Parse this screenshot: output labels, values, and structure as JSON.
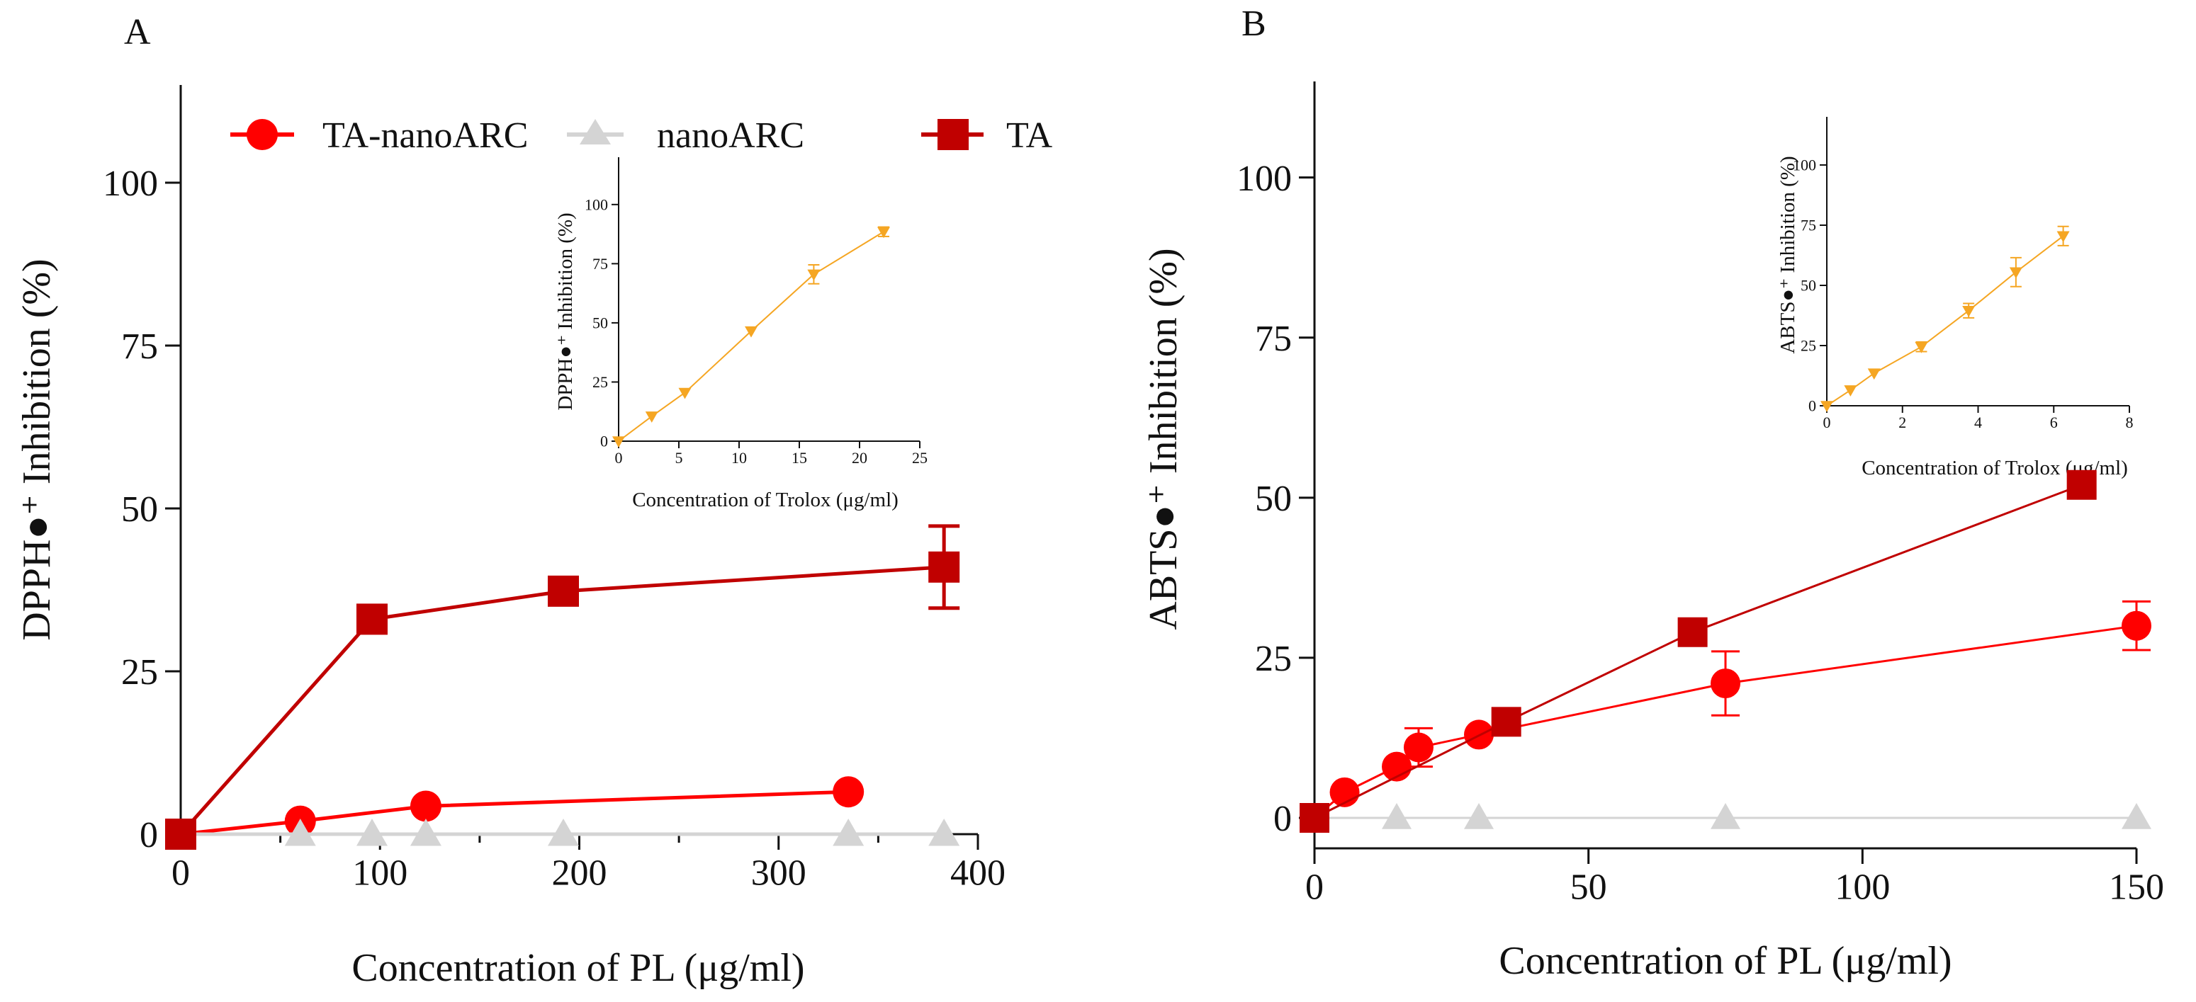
{
  "chart_data": [
    {
      "panel": "A",
      "type": "line",
      "title": "",
      "xlabel": "Concentration of PL  (μg/ml)",
      "ylabel": "DPPH●⁺ Inhibition (%)",
      "xlim": [
        0,
        400
      ],
      "ylim": [
        0,
        115
      ],
      "xticks": [
        0,
        100,
        200,
        300,
        400
      ],
      "yticks": [
        0,
        25,
        50,
        75,
        100
      ],
      "legend_position": "top",
      "series": [
        {
          "name": "TA-nanoARC",
          "color": "#ff0000",
          "marker": "circle",
          "x": [
            0,
            60,
            123,
            335
          ],
          "y": [
            0,
            2,
            4.3,
            6.5
          ],
          "err": [
            0,
            0,
            0,
            0
          ]
        },
        {
          "name": "nanoARC",
          "color": "#d4d4d4",
          "marker": "triangle",
          "x": [
            0,
            60,
            96,
            123,
            192,
            335,
            383
          ],
          "y": [
            0,
            0,
            0,
            0,
            0,
            0,
            0
          ],
          "err": [
            0,
            0,
            0,
            0,
            0,
            0,
            0
          ]
        },
        {
          "name": "TA",
          "color": "#c00000",
          "marker": "square",
          "x": [
            0,
            96,
            192,
            383
          ],
          "y": [
            0,
            33,
            37.3,
            41
          ],
          "err": [
            0,
            0,
            0,
            6.3
          ]
        }
      ],
      "inset": {
        "type": "line",
        "xlabel": "Concentration of Trolox (μg/ml)",
        "ylabel": "DPPH●⁺ Inhibition (%)",
        "xlim": [
          0,
          25
        ],
        "ylim": [
          0,
          120
        ],
        "xticks": [
          0,
          5,
          10,
          15,
          20,
          25
        ],
        "yticks": [
          0,
          25,
          50,
          75,
          100
        ],
        "series": [
          {
            "name": "Trolox",
            "color": "#f5a623",
            "marker": "triangle-down",
            "x": [
              0,
              2.75,
              5.5,
              11,
              16.2,
              22
            ],
            "y": [
              0,
              10.5,
              20.5,
              46.5,
              70.5,
              88.5
            ],
            "err": [
              0,
              0,
              0,
              0,
              4,
              2
            ]
          }
        ]
      }
    },
    {
      "panel": "B",
      "type": "line",
      "title": "",
      "xlabel": "Concentration of PL  (μg/ml)",
      "ylabel": "ABTS●⁺ Inhibition (%)",
      "xlim": [
        0,
        150
      ],
      "ylim": [
        0,
        115
      ],
      "xticks": [
        0,
        50,
        100,
        150
      ],
      "yticks": [
        0,
        25,
        50,
        75,
        100
      ],
      "series": [
        {
          "name": "TA-nanoARC",
          "color": "#ff0000",
          "marker": "circle",
          "x": [
            0,
            5.5,
            15,
            19,
            30,
            75,
            150
          ],
          "y": [
            0,
            4,
            8,
            11,
            13,
            21,
            30
          ],
          "err": [
            0,
            0,
            0,
            3,
            0,
            5,
            3.8
          ]
        },
        {
          "name": "nanoARC",
          "color": "#d4d4d4",
          "marker": "triangle",
          "x": [
            0,
            15,
            30,
            75,
            150
          ],
          "y": [
            0,
            0,
            0,
            0,
            0
          ],
          "err": [
            0,
            0,
            0,
            0,
            0
          ]
        },
        {
          "name": "TA",
          "color": "#c00000",
          "marker": "square",
          "x": [
            0,
            35,
            69,
            140
          ],
          "y": [
            0,
            15,
            29,
            52
          ],
          "err": [
            0,
            0,
            0,
            0
          ]
        }
      ],
      "inset": {
        "type": "line",
        "xlabel": "Concentration of Trolox (μg/ml)",
        "ylabel": "ABTS●⁺ Inhibition (%)",
        "xlim": [
          0,
          8
        ],
        "ylim": [
          0,
          120
        ],
        "xticks": [
          0,
          2,
          4,
          6,
          8
        ],
        "yticks": [
          0,
          25,
          50,
          75,
          100
        ],
        "series": [
          {
            "name": "Trolox",
            "color": "#f5a623",
            "marker": "triangle-down",
            "x": [
              0,
              0.625,
              1.25,
              2.5,
              3.75,
              5,
              6.25
            ],
            "y": [
              0,
              6.5,
              13.5,
              24.5,
              39.5,
              55.5,
              70.5
            ],
            "err": [
              0,
              0,
              0,
              2,
              3,
              6,
              4
            ]
          }
        ]
      }
    }
  ],
  "panel_labels": {
    "a": "A",
    "b": "B"
  },
  "legend": {
    "ta_nanoarc": "TA-nanoARC",
    "nanoarc": "nanoARC",
    "ta": "TA"
  }
}
